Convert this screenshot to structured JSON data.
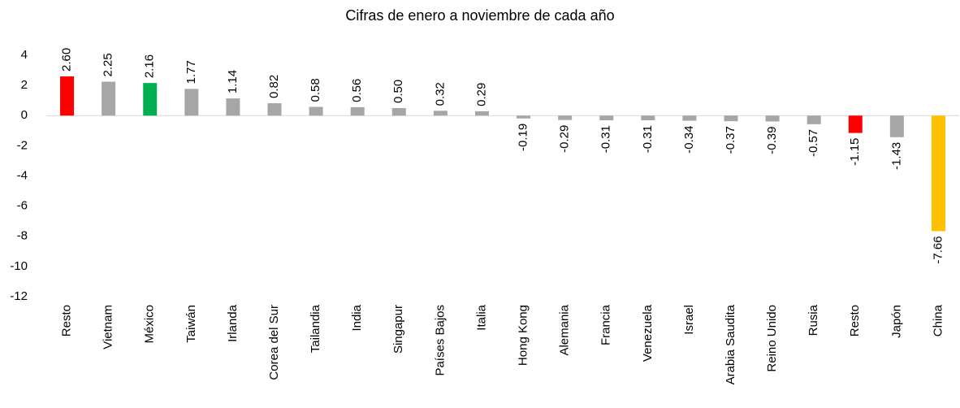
{
  "chart_data": {
    "type": "bar",
    "subtitle": "Cifras de enero a noviembre de cada año",
    "categories": [
      "Resto",
      "Vietnam",
      "México",
      "Taiwán",
      "Irlanda",
      "Corea del Sur",
      "Tailandia",
      "India",
      "Singapur",
      "Países Bajos",
      "Italia",
      "Hong Kong",
      "Alemania",
      "Francia",
      "Venezuela",
      "Israel",
      "Arabia Saudita",
      "Reino Unido",
      "Rusia",
      "Resto",
      "Japón",
      "China"
    ],
    "values": [
      2.6,
      2.25,
      2.16,
      1.77,
      1.14,
      0.82,
      0.58,
      0.56,
      0.5,
      0.32,
      0.29,
      -0.19,
      -0.29,
      -0.31,
      -0.31,
      -0.34,
      -0.37,
      -0.39,
      -0.57,
      -1.15,
      -1.43,
      -7.66
    ],
    "value_labels": [
      "2.60",
      "2.25",
      "2.16",
      "1.77",
      "1.14",
      "0.82",
      "0.58",
      "0.56",
      "0.50",
      "0.32",
      "0.29",
      "-0.19",
      "-0.29",
      "-0.31",
      "-0.31",
      "-0.34",
      "-0.37",
      "-0.39",
      "-0.57",
      "-1.15",
      "-1.43",
      "-7.66"
    ],
    "colors": [
      "#ff0000",
      "#a6a6a6",
      "#00b050",
      "#a6a6a6",
      "#a6a6a6",
      "#a6a6a6",
      "#a6a6a6",
      "#a6a6a6",
      "#a6a6a6",
      "#a6a6a6",
      "#a6a6a6",
      "#a6a6a6",
      "#a6a6a6",
      "#a6a6a6",
      "#a6a6a6",
      "#a6a6a6",
      "#a6a6a6",
      "#a6a6a6",
      "#a6a6a6",
      "#ff0000",
      "#a6a6a6",
      "#ffc000"
    ],
    "ylim": [
      -12,
      4
    ],
    "yticks": [
      -12,
      -10,
      -8,
      -6,
      -4,
      -2,
      0,
      2,
      4
    ],
    "grid": false
  }
}
